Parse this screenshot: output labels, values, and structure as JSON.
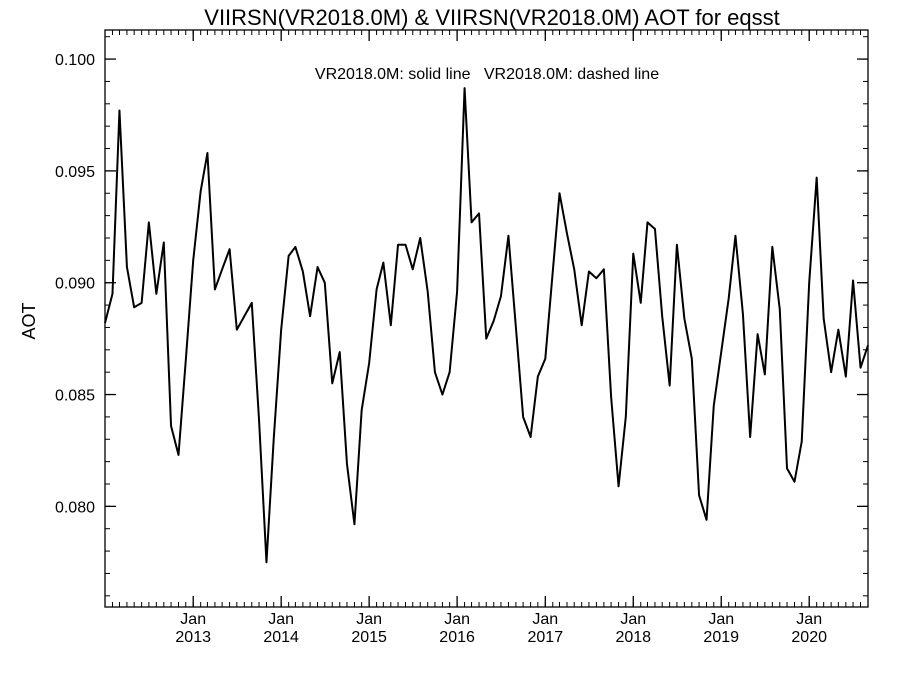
{
  "chart_data": {
    "type": "line",
    "title": "VIIRSN(VR2018.0M) & VIIRSN(VR2018.0M)  AOT for eqsst",
    "annotation": "VR2018.0M: solid line   VR2018.0M: dashed line",
    "xlabel": "",
    "ylabel": "AOT",
    "ylim": [
      0.0755,
      0.1013
    ],
    "yticks": [
      {
        "value": 0.08,
        "label": "0.080"
      },
      {
        "value": 0.085,
        "label": "0.085"
      },
      {
        "value": 0.09,
        "label": "0.090"
      },
      {
        "value": 0.095,
        "label": "0.095"
      },
      {
        "value": 0.1,
        "label": "0.100"
      }
    ],
    "xlim": [
      "2012-01-01",
      "2020-09-01"
    ],
    "xticks": [
      {
        "date": "2013-01-01",
        "month": "Jan",
        "year": "2013"
      },
      {
        "date": "2014-01-01",
        "month": "Jan",
        "year": "2014"
      },
      {
        "date": "2015-01-01",
        "month": "Jan",
        "year": "2015"
      },
      {
        "date": "2016-01-01",
        "month": "Jan",
        "year": "2016"
      },
      {
        "date": "2017-01-01",
        "month": "Jan",
        "year": "2017"
      },
      {
        "date": "2018-01-01",
        "month": "Jan",
        "year": "2018"
      },
      {
        "date": "2019-01-01",
        "month": "Jan",
        "year": "2019"
      },
      {
        "date": "2020-01-01",
        "month": "Jan",
        "year": "2020"
      }
    ],
    "grid": false,
    "line_color": "#000000",
    "series": [
      {
        "values": [
          [
            "2012-01",
            0.0882
          ],
          [
            "2012-02",
            0.0895
          ],
          [
            "2012-03",
            0.0977
          ],
          [
            "2012-04",
            0.0907
          ],
          [
            "2012-05",
            0.0889
          ],
          [
            "2012-06",
            0.0891
          ],
          [
            "2012-07",
            0.0927
          ],
          [
            "2012-08",
            0.0895
          ],
          [
            "2012-09",
            0.0918
          ],
          [
            "2012-10",
            0.0836
          ],
          [
            "2012-11",
            0.0823
          ],
          [
            "2012-12",
            0.0865
          ],
          [
            "2013-01",
            0.091
          ],
          [
            "2013-02",
            0.0941
          ],
          [
            "2013-03",
            0.0958
          ],
          [
            "2013-04",
            0.0897
          ],
          [
            "2013-05",
            0.0906
          ],
          [
            "2013-06",
            0.0915
          ],
          [
            "2013-07",
            0.0879
          ],
          [
            "2013-08",
            0.0885
          ],
          [
            "2013-09",
            0.0891
          ],
          [
            "2013-10",
            0.0839
          ],
          [
            "2013-11",
            0.0775
          ],
          [
            "2013-12",
            0.083
          ],
          [
            "2014-01",
            0.0879
          ],
          [
            "2014-02",
            0.0912
          ],
          [
            "2014-03",
            0.0916
          ],
          [
            "2014-04",
            0.0905
          ],
          [
            "2014-05",
            0.0885
          ],
          [
            "2014-06",
            0.0907
          ],
          [
            "2014-07",
            0.09
          ],
          [
            "2014-08",
            0.0855
          ],
          [
            "2014-09",
            0.0869
          ],
          [
            "2014-10",
            0.0819
          ],
          [
            "2014-11",
            0.0792
          ],
          [
            "2014-12",
            0.0843
          ],
          [
            "2015-01",
            0.0864
          ],
          [
            "2015-02",
            0.0897
          ],
          [
            "2015-03",
            0.0909
          ],
          [
            "2015-04",
            0.0881
          ],
          [
            "2015-05",
            0.0917
          ],
          [
            "2015-06",
            0.0917
          ],
          [
            "2015-07",
            0.0906
          ],
          [
            "2015-08",
            0.092
          ],
          [
            "2015-09",
            0.0896
          ],
          [
            "2015-10",
            0.086
          ],
          [
            "2015-11",
            0.085
          ],
          [
            "2015-12",
            0.086
          ],
          [
            "2016-01",
            0.0896
          ],
          [
            "2016-02",
            0.0987
          ],
          [
            "2016-03",
            0.0927
          ],
          [
            "2016-04",
            0.0931
          ],
          [
            "2016-05",
            0.0875
          ],
          [
            "2016-06",
            0.0883
          ],
          [
            "2016-07",
            0.0894
          ],
          [
            "2016-08",
            0.0921
          ],
          [
            "2016-09",
            0.088
          ],
          [
            "2016-10",
            0.084
          ],
          [
            "2016-11",
            0.0831
          ],
          [
            "2016-12",
            0.0858
          ],
          [
            "2017-01",
            0.0866
          ],
          [
            "2017-02",
            0.0905
          ],
          [
            "2017-03",
            0.094
          ],
          [
            "2017-04",
            0.0922
          ],
          [
            "2017-05",
            0.0906
          ],
          [
            "2017-06",
            0.0881
          ],
          [
            "2017-07",
            0.0905
          ],
          [
            "2017-08",
            0.0902
          ],
          [
            "2017-09",
            0.0906
          ],
          [
            "2017-10",
            0.0849
          ],
          [
            "2017-11",
            0.0809
          ],
          [
            "2017-12",
            0.084
          ],
          [
            "2018-01",
            0.0913
          ],
          [
            "2018-02",
            0.0891
          ],
          [
            "2018-03",
            0.0927
          ],
          [
            "2018-04",
            0.0924
          ],
          [
            "2018-05",
            0.0885
          ],
          [
            "2018-06",
            0.0854
          ],
          [
            "2018-07",
            0.0917
          ],
          [
            "2018-08",
            0.0884
          ],
          [
            "2018-09",
            0.0866
          ],
          [
            "2018-10",
            0.0805
          ],
          [
            "2018-11",
            0.0794
          ],
          [
            "2018-12",
            0.0845
          ],
          [
            "2019-01",
            0.0869
          ],
          [
            "2019-02",
            0.0893
          ],
          [
            "2019-03",
            0.0921
          ],
          [
            "2019-04",
            0.0886
          ],
          [
            "2019-05",
            0.0831
          ],
          [
            "2019-06",
            0.0877
          ],
          [
            "2019-07",
            0.0859
          ],
          [
            "2019-08",
            0.0916
          ],
          [
            "2019-09",
            0.0888
          ],
          [
            "2019-10",
            0.0817
          ],
          [
            "2019-11",
            0.0811
          ],
          [
            "2019-12",
            0.0829
          ],
          [
            "2020-01",
            0.09
          ],
          [
            "2020-02",
            0.0947
          ],
          [
            "2020-03",
            0.0884
          ],
          [
            "2020-04",
            0.086
          ],
          [
            "2020-05",
            0.0879
          ],
          [
            "2020-06",
            0.0858
          ],
          [
            "2020-07",
            0.0901
          ],
          [
            "2020-08",
            0.0862
          ],
          [
            "2020-09",
            0.0872
          ]
        ]
      }
    ]
  }
}
